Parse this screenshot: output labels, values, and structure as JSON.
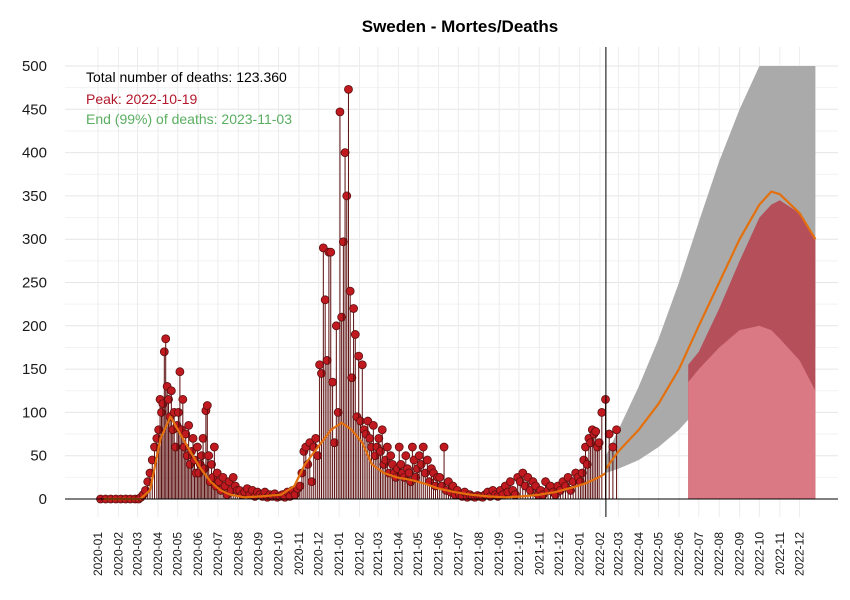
{
  "chart_data": {
    "type": "bar",
    "title": "Sweden - Mortes/Deaths",
    "xlabel": "",
    "ylabel": "",
    "ylim": [
      0,
      500
    ],
    "y_ticks": [
      0,
      50,
      100,
      150,
      200,
      250,
      300,
      350,
      400,
      450,
      500
    ],
    "x_ticks": [
      "2020-01",
      "2020-02",
      "2020-03",
      "2020-04",
      "2020-05",
      "2020-06",
      "2020-07",
      "2020-08",
      "2020-09",
      "2020-10",
      "2020-11",
      "2020-12",
      "2021-01",
      "2021-02",
      "2021-03",
      "2021-04",
      "2021-05",
      "2021-06",
      "2021-07",
      "2021-08",
      "2021-09",
      "2021-10",
      "2021-11",
      "2021-12",
      "2022-01",
      "2022-02",
      "2022-03",
      "2022-04",
      "2022-05",
      "2022-06",
      "2022-07",
      "2022-08",
      "2022-09",
      "2022-10",
      "2022-11",
      "2022-12"
    ],
    "grid": true,
    "forecast_start": "2022-02-10",
    "annotations": [
      {
        "text": "Total number of deaths: 123.360",
        "color": "#000000"
      },
      {
        "text": "Peak: 2022-10-19",
        "color": "#b2182b"
      },
      {
        "text": "End (99%) of deaths: 2023-11-03",
        "color": "#5aae61"
      }
    ],
    "observed_daily_deaths": [
      {
        "month": "2020-01",
        "values": [
          0,
          0,
          0,
          0
        ]
      },
      {
        "month": "2020-02",
        "values": [
          0,
          0,
          0,
          0
        ]
      },
      {
        "month": "2020-03",
        "values": [
          0,
          2,
          5,
          10,
          20,
          30,
          45,
          60,
          70
        ]
      },
      {
        "month": "2020-04",
        "values": [
          80,
          115,
          100,
          110,
          170,
          185,
          130,
          115,
          95,
          125,
          80,
          100,
          60,
          85
        ]
      },
      {
        "month": "2020-05",
        "values": [
          100,
          147,
          80,
          115,
          60,
          75,
          50,
          85,
          40,
          55,
          70,
          45,
          30,
          60
        ]
      },
      {
        "month": "2020-06",
        "values": [
          30,
          40,
          50,
          70,
          35,
          102,
          108,
          50,
          20,
          40,
          25,
          60,
          15,
          30
        ]
      },
      {
        "month": "2020-07",
        "values": [
          20,
          10,
          25,
          15,
          5,
          20,
          10,
          25,
          15,
          10
        ]
      },
      {
        "month": "2020-08",
        "values": [
          10,
          5,
          8,
          12,
          5,
          10,
          3,
          8
        ]
      },
      {
        "month": "2020-09",
        "values": [
          5,
          3,
          8,
          2,
          5,
          3,
          6,
          2
        ]
      },
      {
        "month": "2020-10",
        "values": [
          3,
          5,
          2,
          8,
          3,
          10,
          5,
          12
        ]
      },
      {
        "month": "2020-11",
        "values": [
          15,
          30,
          55,
          60,
          40,
          65,
          20,
          60,
          70,
          50
        ]
      },
      {
        "month": "2020-12",
        "values": [
          155,
          145,
          290,
          230,
          160,
          285,
          285,
          135,
          65,
          200,
          100
        ]
      },
      {
        "month": "2021-01",
        "values": [
          447,
          210,
          297,
          400,
          350,
          473,
          240,
          140,
          220,
          190,
          95,
          165
        ]
      },
      {
        "month": "2021-02",
        "values": [
          90,
          155,
          80,
          75,
          90,
          70,
          60,
          85,
          50,
          60
        ]
      },
      {
        "month": "2021-03",
        "values": [
          70,
          55,
          80,
          40,
          45,
          60,
          30,
          50,
          40,
          30,
          25,
          35
        ]
      },
      {
        "month": "2021-04",
        "values": [
          60,
          40,
          30,
          25,
          50,
          35,
          30,
          20,
          60,
          45,
          25,
          35
        ]
      },
      {
        "month": "2021-05",
        "values": [
          50,
          40,
          60,
          30,
          45,
          20,
          35,
          30,
          15,
          25
        ]
      },
      {
        "month": "2021-06",
        "values": [
          25,
          15,
          60,
          10,
          20,
          8,
          15,
          5,
          10
        ]
      },
      {
        "month": "2021-07",
        "values": [
          5,
          3,
          8,
          2,
          5,
          3,
          2,
          4
        ]
      },
      {
        "month": "2021-08",
        "values": [
          3,
          2,
          5,
          8,
          3,
          10,
          5,
          3
        ]
      },
      {
        "month": "2021-09",
        "values": [
          10,
          5,
          15,
          8,
          20,
          10,
          5,
          25
        ]
      },
      {
        "month": "2021-10",
        "values": [
          20,
          30,
          15,
          25,
          10,
          20,
          15,
          5
        ]
      },
      {
        "month": "2021-11",
        "values": [
          10,
          5,
          20,
          10,
          15,
          8,
          5,
          15
        ]
      },
      {
        "month": "2021-12",
        "values": [
          10,
          20,
          15,
          25,
          10,
          20,
          30,
          25
        ]
      },
      {
        "month": "2022-01",
        "values": [
          20,
          30,
          45,
          60,
          40,
          70,
          65,
          80,
          75,
          78,
          60,
          65
        ]
      },
      {
        "month": "2022-02",
        "values": [
          100,
          115,
          75,
          60,
          80
        ]
      }
    ],
    "series": [
      {
        "name": "",
        "color": "#e4700d",
        "x": [
          "2020-01-10",
          "2020-03-05",
          "2020-03-20",
          "2020-04-05",
          "2020-04-20",
          "2020-05-05",
          "2020-05-20",
          "2020-06-05",
          "2020-06-20",
          "2020-07-05",
          "2020-07-20",
          "2020-08-10",
          "2020-09-05",
          "2020-10-05",
          "2020-10-25",
          "2020-11-10",
          "2020-11-25",
          "2020-12-05",
          "2020-12-20",
          "2021-01-05",
          "2021-01-20",
          "2021-02-05",
          "2021-02-20",
          "2021-03-10",
          "2021-03-30",
          "2021-04-20",
          "2021-05-10",
          "2021-06-01",
          "2021-06-25",
          "2021-07-20",
          "2021-08-15",
          "2021-09-10",
          "2021-10-05",
          "2021-11-01",
          "2021-11-25",
          "2021-12-20",
          "2022-01-10",
          "2022-01-30",
          "2022-02-10"
        ],
        "y": [
          0,
          0,
          10,
          70,
          95,
          75,
          55,
          35,
          20,
          10,
          5,
          2,
          3,
          5,
          15,
          40,
          55,
          65,
          80,
          88,
          80,
          65,
          40,
          30,
          25,
          22,
          18,
          12,
          8,
          5,
          3,
          2,
          3,
          5,
          8,
          13,
          18,
          25,
          30
        ]
      },
      {
        "name": "",
        "color": "#e4700d",
        "x": [
          "2022-02-10",
          "2022-03-01",
          "2022-04-01",
          "2022-05-01",
          "2022-06-01",
          "2022-07-01",
          "2022-08-01",
          "2022-09-01",
          "2022-10-01",
          "2022-10-19",
          "2022-11-01",
          "2022-12-01",
          "2022-12-25"
        ],
        "y": [
          35,
          55,
          80,
          110,
          150,
          200,
          250,
          300,
          340,
          355,
          352,
          330,
          300
        ]
      }
    ],
    "forecast_bands": {
      "outer": {
        "color": "#aaaaaa",
        "x": [
          "2022-02-10",
          "2022-03-01",
          "2022-04-01",
          "2022-05-01",
          "2022-06-01",
          "2022-07-01",
          "2022-08-01",
          "2022-09-01",
          "2022-10-01",
          "2022-11-01",
          "2022-12-01",
          "2022-12-25"
        ],
        "upper": [
          50,
          80,
          130,
          185,
          250,
          320,
          390,
          450,
          500,
          500,
          500,
          500
        ],
        "lower": [
          30,
          35,
          45,
          60,
          80,
          105,
          135,
          165,
          185,
          195,
          190,
          175
        ]
      },
      "middle": {
        "color": "#b5505b",
        "start": "2022-06-15",
        "x": [
          "2022-06-15",
          "2022-07-01",
          "2022-08-01",
          "2022-09-01",
          "2022-10-01",
          "2022-10-19",
          "2022-11-01",
          "2022-12-01",
          "2022-12-25"
        ],
        "upper": [
          155,
          170,
          220,
          275,
          325,
          340,
          345,
          330,
          300
        ]
      },
      "inner": {
        "color": "#da7883",
        "start": "2022-06-15",
        "x": [
          "2022-06-15",
          "2022-07-01",
          "2022-08-01",
          "2022-09-01",
          "2022-10-01",
          "2022-10-19",
          "2022-11-01",
          "2022-12-01",
          "2022-12-25"
        ],
        "upper": [
          135,
          150,
          175,
          195,
          200,
          195,
          185,
          160,
          125
        ]
      }
    }
  }
}
